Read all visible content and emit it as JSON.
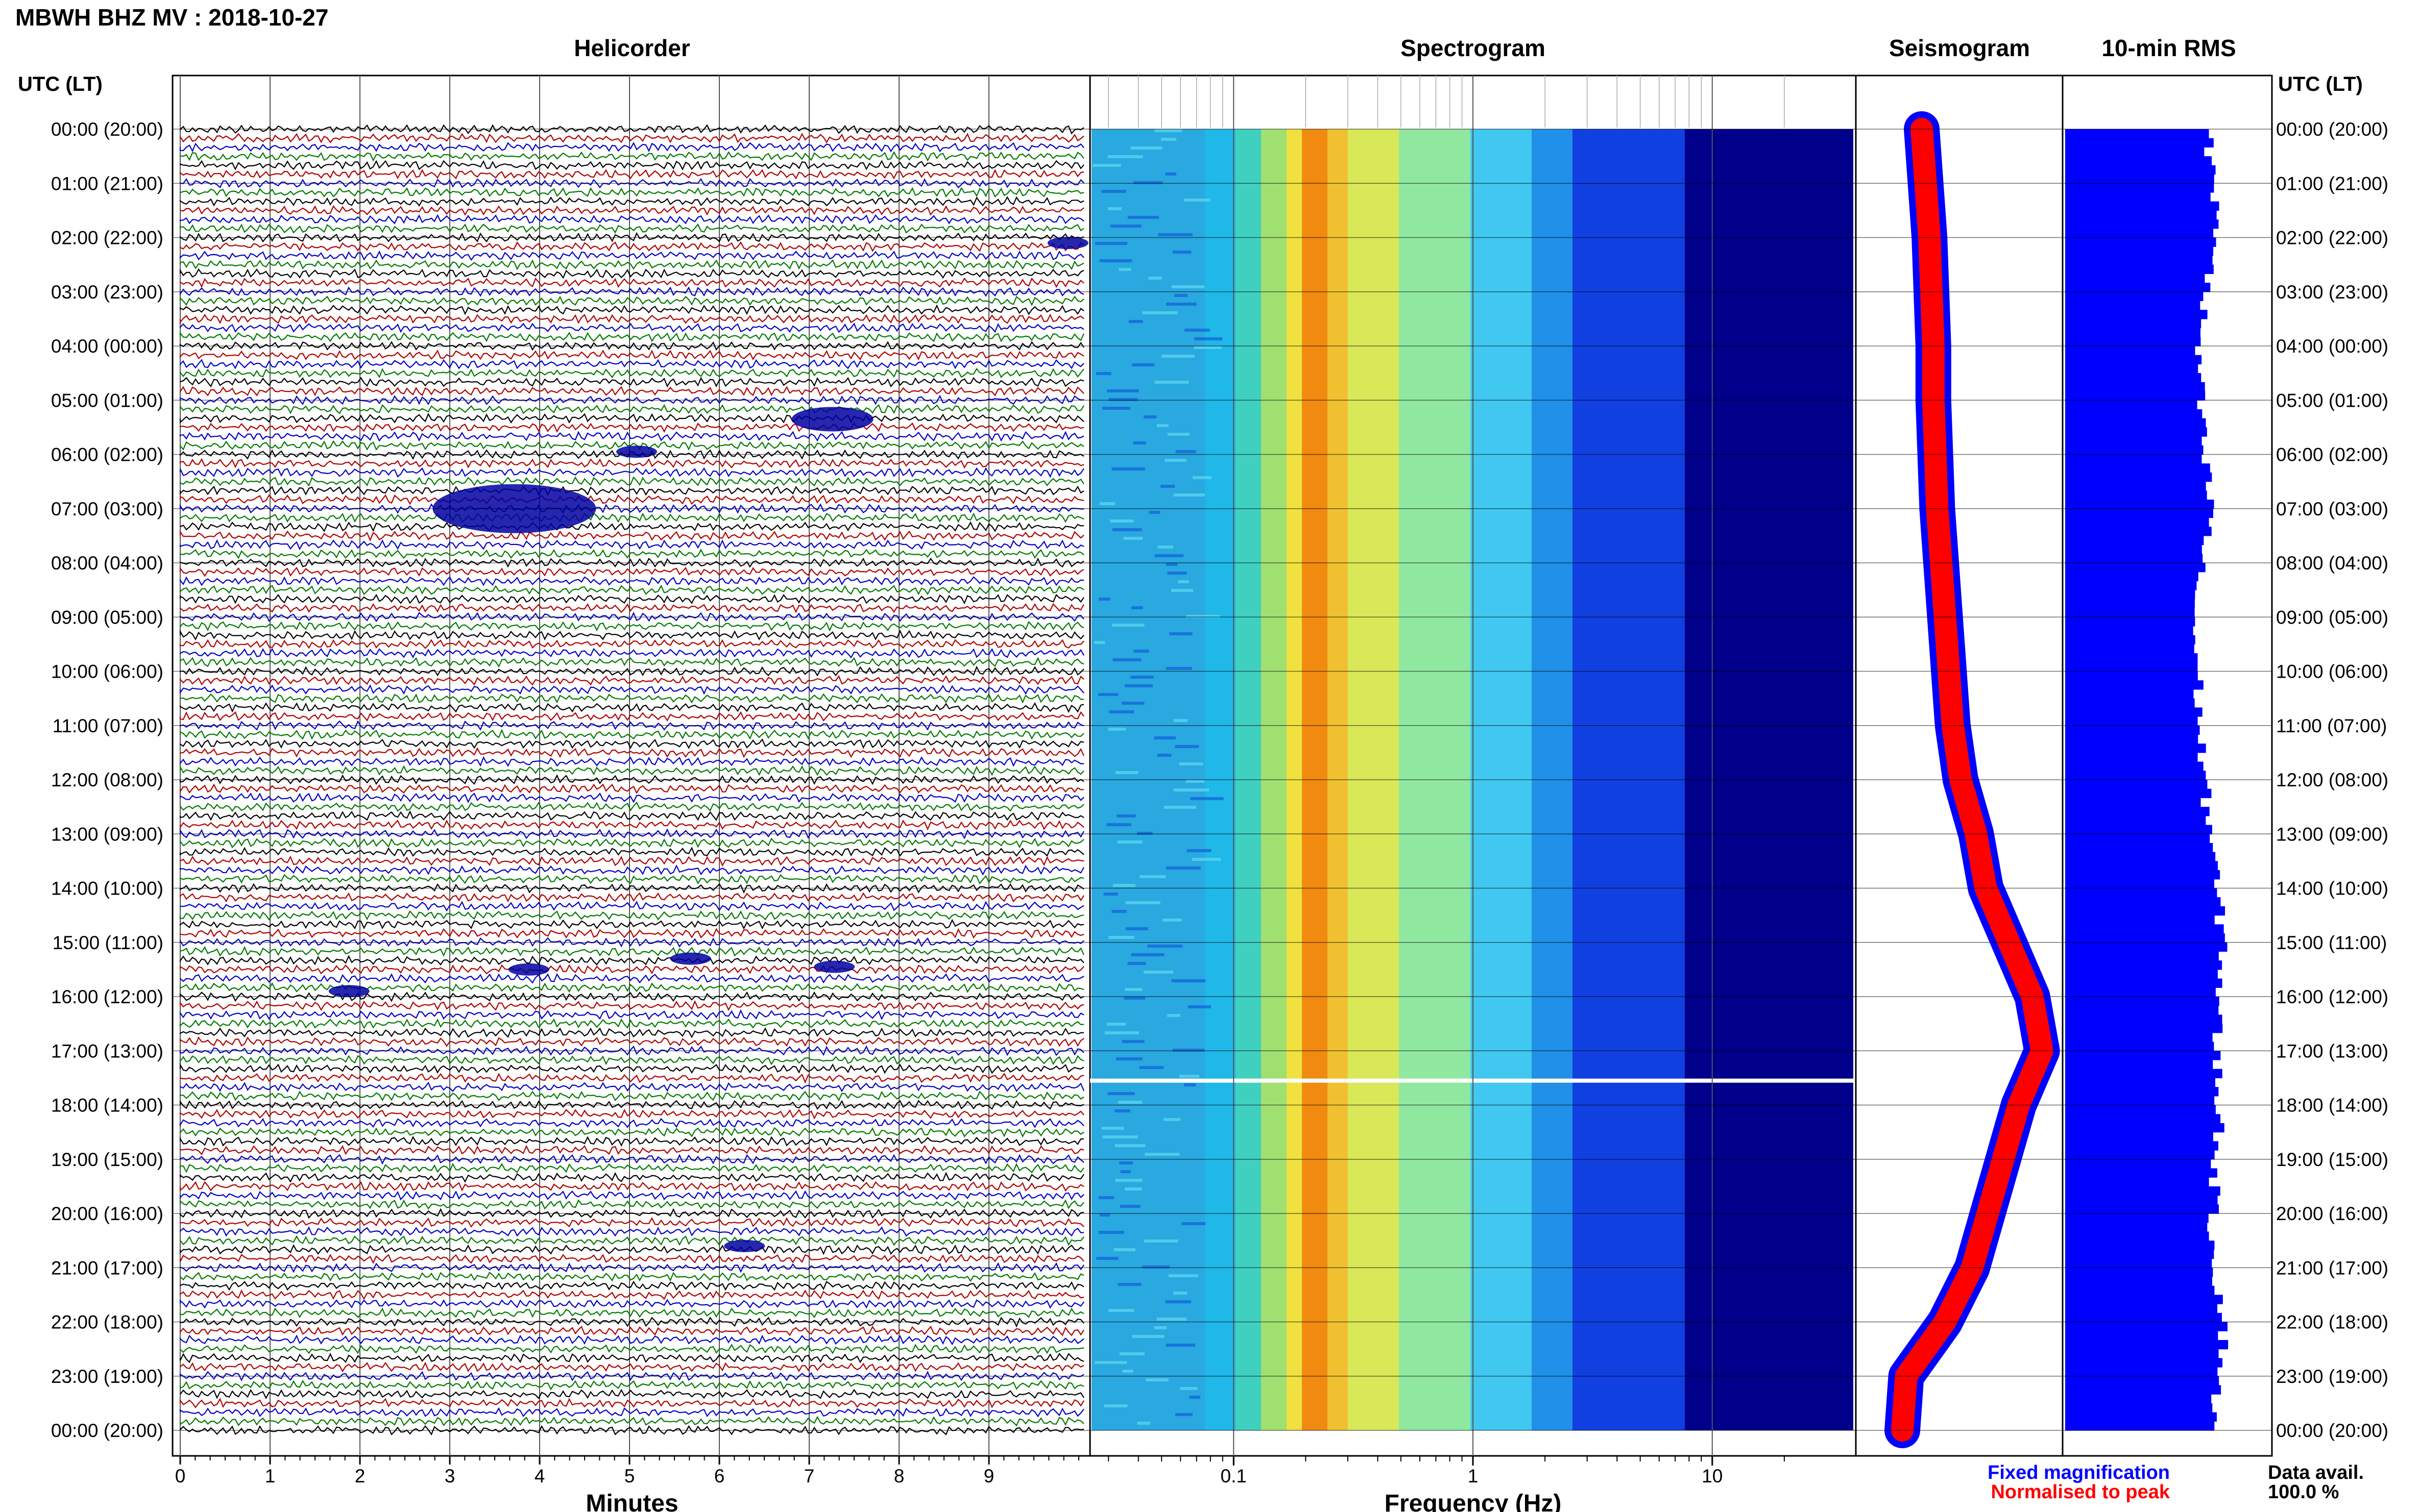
{
  "title": "MBWH BHZ MV : 2018-10-27",
  "panels": {
    "helicorder": "Helicorder",
    "spectrogram": "Spectrogram",
    "seismogram": "Seismogram",
    "rms": "10-min RMS"
  },
  "axis_titles": {
    "time_left": "UTC (LT)",
    "time_right": "UTC (LT)",
    "minutes": "Minutes",
    "frequency": "Frequency (Hz)"
  },
  "legend": {
    "fixed": "Fixed magnification",
    "normalised": "Normalised to peak",
    "fixed_color": "#0000ff",
    "normalised_color": "#ff0000"
  },
  "data_avail": {
    "label": "Data avail.",
    "value": "100.0 %"
  },
  "colors": {
    "trace_cycle": [
      "#000000",
      "#b00000",
      "#0000c8",
      "#007a00"
    ],
    "spectrogram_low": "#00008b",
    "spectrogram_mid": "#40c8f0",
    "spectrogram_high": "#f08000",
    "rms_bar": "#0000ff"
  },
  "chart_data": [
    {
      "type": "line",
      "name": "helicorder",
      "x_ticks": [
        "0",
        "1",
        "2",
        "3",
        "4",
        "5",
        "6",
        "7",
        "8",
        "9"
      ],
      "xlabel": "Minutes",
      "time_labels": [
        "00:00 (20:00)",
        "01:00 (21:00)",
        "02:00 (22:00)",
        "03:00 (23:00)",
        "04:00 (00:00)",
        "05:00 (01:00)",
        "06:00 (02:00)",
        "07:00 (03:00)",
        "08:00 (04:00)",
        "09:00 (05:00)",
        "10:00 (06:00)",
        "11:00 (07:00)",
        "12:00 (08:00)",
        "13:00 (09:00)",
        "14:00 (10:00)",
        "15:00 (11:00)",
        "16:00 (12:00)",
        "17:00 (13:00)",
        "18:00 (14:00)",
        "19:00 (15:00)",
        "20:00 (16:00)",
        "21:00 (17:00)",
        "22:00 (18:00)",
        "23:00 (19:00)",
        "00:00 (20:00)"
      ],
      "events": [
        {
          "hour": 2.1,
          "minute": 9.8,
          "amp": 2
        },
        {
          "hour": 5.35,
          "minute": 7.1,
          "amp": 4
        },
        {
          "hour": 5.95,
          "minute": 5.0,
          "amp": 2
        },
        {
          "hour": 7.0,
          "minute": 3.4,
          "amp": 8
        },
        {
          "hour": 15.3,
          "minute": 5.6,
          "amp": 2
        },
        {
          "hour": 15.45,
          "minute": 7.2,
          "amp": 2
        },
        {
          "hour": 15.5,
          "minute": 3.8,
          "amp": 2
        },
        {
          "hour": 15.9,
          "minute": 1.8,
          "amp": 2
        },
        {
          "hour": 20.6,
          "minute": 6.2,
          "amp": 2
        }
      ]
    },
    {
      "type": "heatmap",
      "name": "spectrogram",
      "x_ticks": [
        "0.1",
        "1",
        "10"
      ],
      "xlabel": "Frequency (Hz)",
      "x_scale": "log",
      "peak_band_hz": 0.3,
      "gap_hour": 17.55
    },
    {
      "type": "line",
      "name": "seismogram",
      "hours": [
        0,
        1,
        2,
        3,
        4,
        5,
        6,
        7,
        8,
        9,
        10,
        11,
        12,
        13,
        14,
        15,
        16,
        17,
        18,
        19,
        20,
        21,
        22,
        23,
        24
      ],
      "level": [
        0.3,
        0.32,
        0.34,
        0.35,
        0.36,
        0.36,
        0.37,
        0.38,
        0.4,
        0.42,
        0.44,
        0.46,
        0.5,
        0.58,
        0.63,
        0.75,
        0.87,
        0.92,
        0.8,
        0.72,
        0.64,
        0.56,
        0.42,
        0.22,
        0.2
      ]
    },
    {
      "type": "bar",
      "name": "10-min RMS",
      "hours": [
        0,
        1,
        2,
        3,
        4,
        5,
        6,
        7,
        8,
        9,
        10,
        11,
        12,
        13,
        14,
        15,
        16,
        17,
        18,
        19,
        20,
        21,
        22,
        23,
        24
      ],
      "rms": [
        0.7,
        0.72,
        0.75,
        0.68,
        0.65,
        0.66,
        0.68,
        0.72,
        0.66,
        0.63,
        0.65,
        0.66,
        0.68,
        0.72,
        0.74,
        0.78,
        0.75,
        0.74,
        0.76,
        0.74,
        0.72,
        0.74,
        0.78,
        0.76,
        0.7
      ]
    }
  ]
}
